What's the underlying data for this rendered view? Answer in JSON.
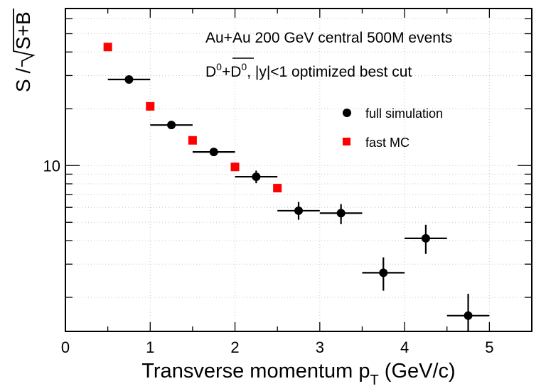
{
  "chart_data": {
    "type": "scatter",
    "title": "",
    "xlabel": "Transverse momentum p",
    "xlabel_sub": "T",
    "xlabel_suffix": " (GeV/c)",
    "ylabel": "S /√S+B",
    "ylabel_parts": {
      "num": "S /",
      "radicand": "S+B"
    },
    "xlim": [
      0,
      5.5
    ],
    "ylim": [
      1.32,
      68
    ],
    "yscale": "log",
    "grid": true,
    "x_ticks": [
      0,
      1,
      2,
      3,
      4,
      5
    ],
    "x_tick_labels": [
      "0",
      "1",
      "2",
      "3",
      "4",
      "5"
    ],
    "y_tick_labels": [
      {
        "value": 10,
        "label": "10"
      }
    ],
    "annotations": [
      "Au+Au 200 GeV central 500M events",
      "D0+D0bar, |y|<1 optimized best cut"
    ],
    "annotation_parts": {
      "line1": "Au+Au 200 GeV central 500M events",
      "line2_a": "D",
      "line2_sup": "0",
      "line2_plus": "+",
      "line2_bar": "D",
      "line2_barsup": "0",
      "line2_rest": ", |y|<1 optimized best cut"
    },
    "legend_position": "upper-right",
    "series": [
      {
        "name": "full simulation",
        "marker": "circle",
        "color": "#000000",
        "points": [
          {
            "x": 0.75,
            "xerr": 0.25,
            "y": 28.6,
            "ylo": 28.6,
            "yhi": 28.6
          },
          {
            "x": 1.25,
            "xerr": 0.25,
            "y": 16.4,
            "ylo": 16.4,
            "yhi": 16.4
          },
          {
            "x": 1.75,
            "xerr": 0.25,
            "y": 11.8,
            "ylo": 11.6,
            "yhi": 12.1
          },
          {
            "x": 2.25,
            "xerr": 0.25,
            "y": 8.72,
            "ylo": 8.06,
            "yhi": 9.4
          },
          {
            "x": 2.75,
            "xerr": 0.25,
            "y": 5.76,
            "ylo": 5.16,
            "yhi": 6.41
          },
          {
            "x": 3.25,
            "xerr": 0.25,
            "y": 5.59,
            "ylo": 4.89,
            "yhi": 6.24
          },
          {
            "x": 3.75,
            "xerr": 0.25,
            "y": 2.7,
            "ylo": 2.17,
            "yhi": 3.26
          },
          {
            "x": 4.25,
            "xerr": 0.25,
            "y": 4.11,
            "ylo": 3.4,
            "yhi": 4.85
          },
          {
            "x": 4.75,
            "xerr": 0.25,
            "y": 1.6,
            "ylo": 1.2,
            "yhi": 2.09
          }
        ]
      },
      {
        "name": "fast MC",
        "marker": "square",
        "color": "#ff0000",
        "points": [
          {
            "x": 0.5,
            "y": 42.5
          },
          {
            "x": 1.0,
            "y": 20.6
          },
          {
            "x": 1.5,
            "y": 13.6
          },
          {
            "x": 2.0,
            "y": 9.83
          },
          {
            "x": 2.5,
            "y": 7.59
          }
        ]
      }
    ]
  }
}
